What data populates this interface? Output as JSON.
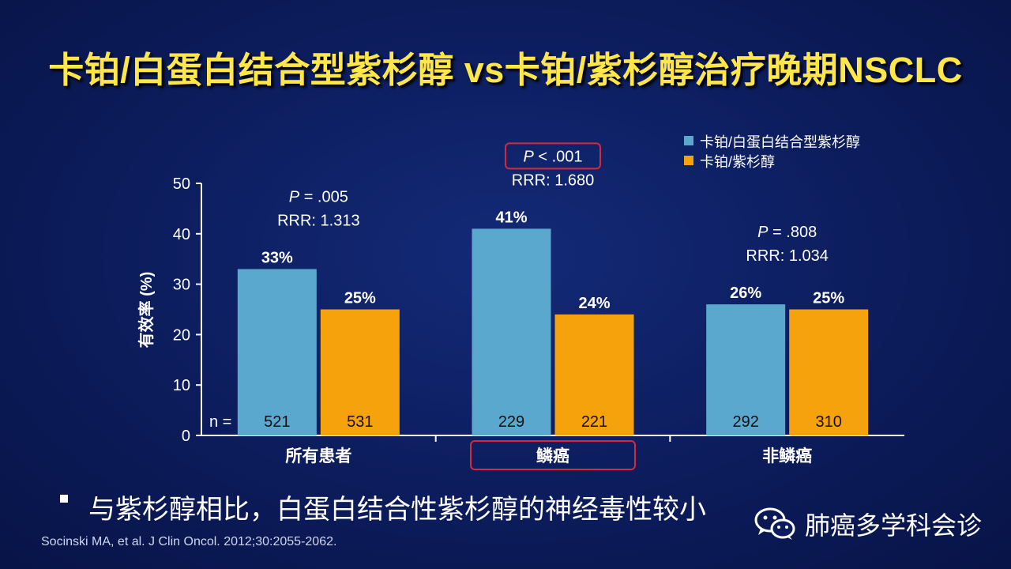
{
  "title": "卡铂/白蛋白结合型紫杉醇 vs卡铂/紫杉醇治疗晚期NSCLC",
  "colors": {
    "series_a": "#5ba8cf",
    "series_b": "#f5a20c",
    "highlight": "#d8283a",
    "background": "#0c1c5c",
    "title": "#ffe74a"
  },
  "n_label": "n =",
  "chart_data": {
    "type": "bar",
    "categories": [
      "所有患者",
      "鳞癌",
      "非鳞癌"
    ],
    "series": [
      {
        "name": "卡铂/白蛋白结合型紫杉醇",
        "values": [
          33,
          41,
          26
        ],
        "labels": [
          "33%",
          "41%",
          "26%"
        ],
        "n": [
          "521",
          "229",
          "292"
        ]
      },
      {
        "name": "卡铂/紫杉醇",
        "values": [
          25,
          24,
          25
        ],
        "labels": [
          "25%",
          "24%",
          "25%"
        ],
        "n": [
          "531",
          "221",
          "310"
        ]
      }
    ],
    "ylabel": "有效率 (%)",
    "ylim": [
      0,
      50
    ],
    "yticks": [
      "0",
      "10",
      "20",
      "30",
      "40",
      "50"
    ],
    "annotations": [
      {
        "p_prefix": "P",
        "p_value": " = .005",
        "rrr": "RRR: 1.313",
        "highlighted": false
      },
      {
        "p_prefix": "P",
        "p_value": " < .001",
        "rrr": "RRR: 1.680",
        "highlighted": true
      },
      {
        "p_prefix": "P",
        "p_value": " = .808",
        "rrr": "RRR: 1.034",
        "highlighted": false
      }
    ],
    "highlighted_category": "鳞癌",
    "legend_position": "top-right"
  },
  "bullet": "与紫杉醇相比，白蛋白结合性紫杉醇的神经毒性较小",
  "citation": "Socinski MA, et al. J Clin Oncol. 2012;30:2055-2062.",
  "watermark": {
    "icon": "wechat-icon",
    "text": "肺癌多学科会诊"
  }
}
